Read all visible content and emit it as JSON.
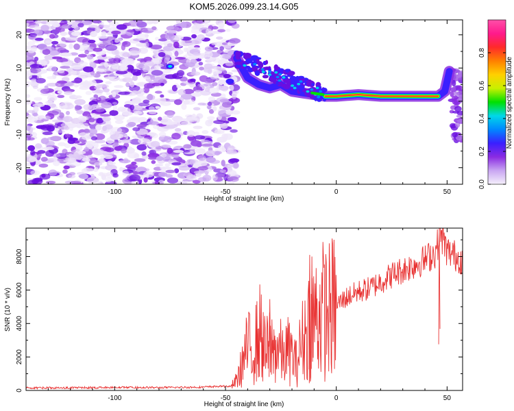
{
  "chart_data": [
    {
      "type": "heatmap",
      "title": "KOM5.2026.099.23.14.G05",
      "xlabel": "Height of straight line (km)",
      "ylabel": "Frequency (Hz)",
      "xlim": [
        -140,
        57
      ],
      "ylim": [
        -25,
        24.5
      ],
      "xticks": [
        -100,
        -50,
        0,
        50
      ],
      "yticks": [
        -20,
        -10,
        0,
        10,
        20
      ],
      "colorbar": {
        "label": "Normalized spectral amplitude",
        "range": [
          0,
          1
        ],
        "ticks": [
          0.0,
          0.2,
          0.4,
          0.6,
          0.8
        ],
        "colors": [
          "#f5f0fb",
          "#c9a6f2",
          "#8a2be2",
          "#3a1fff",
          "#0088ff",
          "#00d8e8",
          "#00e000",
          "#c8f000",
          "#ffd000",
          "#ff8000",
          "#ff2a2a",
          "#ff1a8c",
          "#ff4fa8"
        ]
      },
      "trace": {
        "description_points": [
          {
            "x": -45,
            "y": 13
          },
          {
            "x": -40,
            "y": 7
          },
          {
            "x": -35,
            "y": 5
          },
          {
            "x": -30,
            "y": 4
          },
          {
            "x": -25,
            "y": 5
          },
          {
            "x": -20,
            "y": 3
          },
          {
            "x": -15,
            "y": 2.5
          },
          {
            "x": -10,
            "y": 2
          },
          {
            "x": -5,
            "y": 1.5
          },
          {
            "x": 0,
            "y": 1.5
          },
          {
            "x": 10,
            "y": 2
          },
          {
            "x": 20,
            "y": 1.5
          },
          {
            "x": 30,
            "y": 1.5
          },
          {
            "x": 40,
            "y": 1.5
          },
          {
            "x": 46,
            "y": 1.5
          },
          {
            "x": 49,
            "y": 3
          },
          {
            "x": 51,
            "y": 9
          }
        ]
      }
    },
    {
      "type": "line",
      "xlabel": "Height of straight line (km)",
      "ylabel": "SNR (10 * v/v)",
      "xlim": [
        -140,
        57
      ],
      "ylim": [
        0,
        9700
      ],
      "xticks": [
        -100,
        -50,
        0,
        50
      ],
      "yticks": [
        0,
        2000,
        4000,
        6000,
        8000
      ],
      "color": "#e83030",
      "series": [
        {
          "name": "SNR",
          "x": [
            -140,
            -120,
            -100,
            -80,
            -60,
            -52,
            -48,
            -46,
            -44,
            -42,
            -40,
            -38,
            -36,
            -34,
            -32,
            -30,
            -28,
            -26,
            -24,
            -22,
            -20,
            -18,
            -16,
            -14,
            -12,
            -10,
            -8,
            -6,
            -4,
            -2,
            0,
            5,
            10,
            15,
            20,
            25,
            30,
            35,
            40,
            45,
            47,
            50,
            53,
            57
          ],
          "y": [
            150,
            160,
            180,
            170,
            200,
            250,
            250,
            400,
            900,
            1800,
            2600,
            2400,
            2900,
            3600,
            2200,
            2700,
            2400,
            2600,
            1900,
            2400,
            2100,
            1600,
            2700,
            3400,
            4200,
            4400,
            4600,
            4800,
            4700,
            4900,
            5100,
            5600,
            5900,
            6100,
            6500,
            6900,
            7200,
            7500,
            7800,
            8300,
            9500,
            8300,
            8100,
            7800
          ]
        }
      ],
      "peaks": [
        {
          "x": -30,
          "y": 5450
        },
        {
          "x": -12,
          "y": 8100
        },
        {
          "x": -11,
          "y": 8000
        },
        {
          "x": 46.5,
          "y": 9700
        }
      ]
    }
  ]
}
